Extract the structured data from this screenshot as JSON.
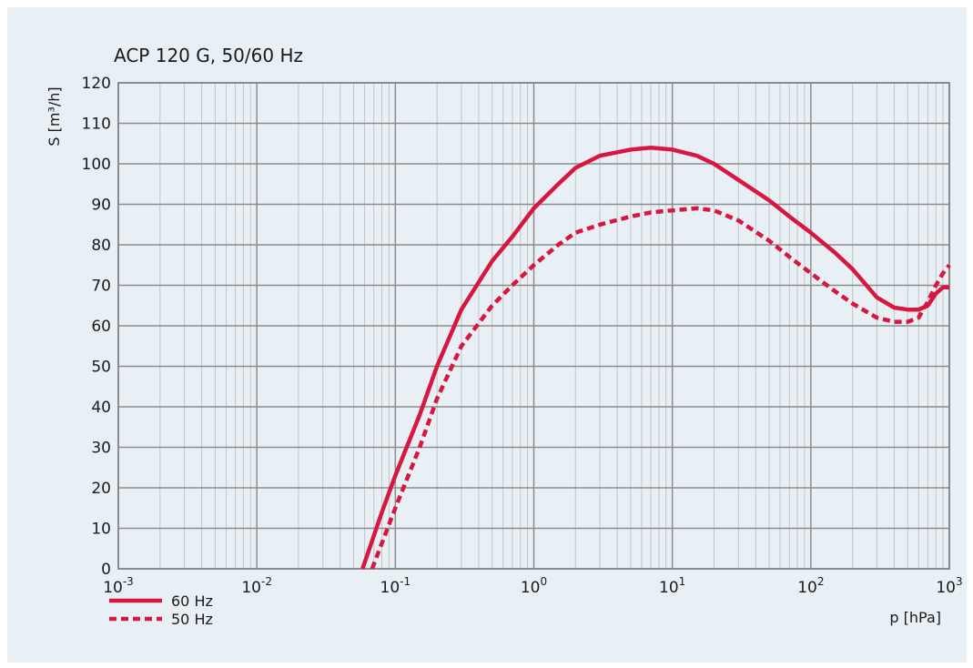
{
  "chart_data": {
    "type": "line",
    "title": "ACP 120 G, 50/60 Hz",
    "xlabel": "p [hPa]",
    "ylabel": "S [m³/h]",
    "x_scale": "log",
    "xlim": [
      0.001,
      1000
    ],
    "ylim": [
      0,
      120
    ],
    "x_ticks": [
      {
        "base": "10",
        "exp": "-3"
      },
      {
        "base": "10",
        "exp": "-2"
      },
      {
        "base": "10",
        "exp": "-1"
      },
      {
        "base": "10",
        "exp": "0"
      },
      {
        "base": "10",
        "exp": "1"
      },
      {
        "base": "10",
        "exp": "2"
      },
      {
        "base": "10",
        "exp": "3"
      }
    ],
    "y_ticks": [
      "0",
      "10",
      "20",
      "30",
      "40",
      "50",
      "60",
      "70",
      "80",
      "90",
      "100",
      "110",
      "120"
    ],
    "grid": true,
    "legend_position": "bottom-left",
    "colors": {
      "line": "#d7173f",
      "grid_major": "#8c8c8c",
      "grid_minor": "#c4c4c4",
      "background": "#e8f0f6"
    },
    "series": [
      {
        "name": "60 Hz",
        "style": "solid",
        "points": [
          [
            0.058,
            0
          ],
          [
            0.08,
            14
          ],
          [
            0.1,
            23
          ],
          [
            0.15,
            38
          ],
          [
            0.2,
            50
          ],
          [
            0.3,
            64
          ],
          [
            0.5,
            76
          ],
          [
            0.7,
            82
          ],
          [
            1,
            89
          ],
          [
            1.5,
            95
          ],
          [
            2,
            99
          ],
          [
            3,
            102
          ],
          [
            5,
            103.5
          ],
          [
            7,
            104
          ],
          [
            10,
            103.5
          ],
          [
            15,
            102
          ],
          [
            20,
            100
          ],
          [
            30,
            96
          ],
          [
            50,
            91
          ],
          [
            70,
            87
          ],
          [
            100,
            83
          ],
          [
            150,
            78
          ],
          [
            200,
            74
          ],
          [
            300,
            67
          ],
          [
            400,
            64.5
          ],
          [
            500,
            64
          ],
          [
            600,
            64
          ],
          [
            700,
            65
          ],
          [
            800,
            68
          ],
          [
            900,
            69.5
          ],
          [
            1000,
            69.5
          ]
        ]
      },
      {
        "name": "50 Hz",
        "style": "dashed",
        "points": [
          [
            0.068,
            0
          ],
          [
            0.1,
            15
          ],
          [
            0.15,
            30
          ],
          [
            0.2,
            42
          ],
          [
            0.3,
            55
          ],
          [
            0.5,
            65
          ],
          [
            0.7,
            70
          ],
          [
            1,
            75
          ],
          [
            1.5,
            80
          ],
          [
            2,
            83
          ],
          [
            3,
            85
          ],
          [
            5,
            87
          ],
          [
            7,
            88
          ],
          [
            10,
            88.5
          ],
          [
            15,
            89
          ],
          [
            20,
            88.5
          ],
          [
            30,
            86
          ],
          [
            50,
            81
          ],
          [
            70,
            77
          ],
          [
            100,
            73
          ],
          [
            150,
            68.5
          ],
          [
            200,
            65.5
          ],
          [
            300,
            62
          ],
          [
            400,
            61
          ],
          [
            500,
            61
          ],
          [
            600,
            62
          ],
          [
            700,
            66
          ],
          [
            800,
            70
          ],
          [
            900,
            73
          ],
          [
            1000,
            75
          ]
        ]
      }
    ]
  }
}
